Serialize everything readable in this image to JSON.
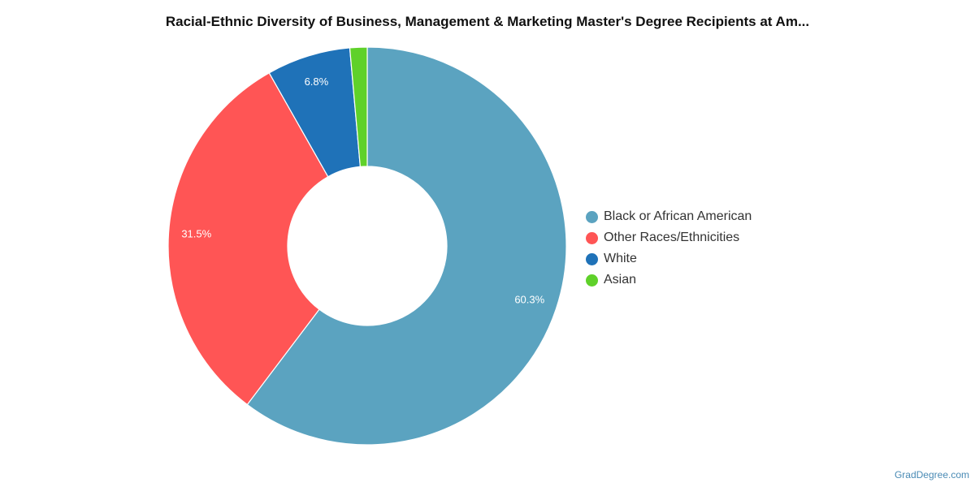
{
  "chart_data": {
    "type": "pie",
    "title": "Racial-Ethnic Diversity of Business, Management & Marketing Master's Degree Recipients at Am...",
    "donut": true,
    "legend_position": "right",
    "labels": [
      "Black or African American",
      "Other Races/Ethnicities",
      "White",
      "Asian"
    ],
    "values": [
      60.3,
      31.5,
      6.8,
      1.4
    ],
    "data_labels": [
      "60.3%",
      "31.5%",
      "6.8%",
      ""
    ],
    "colors": [
      "#5ba3c0",
      "#ff5555",
      "#1f72b8",
      "#5fd12a"
    ]
  },
  "credit": "GradDegree.com"
}
